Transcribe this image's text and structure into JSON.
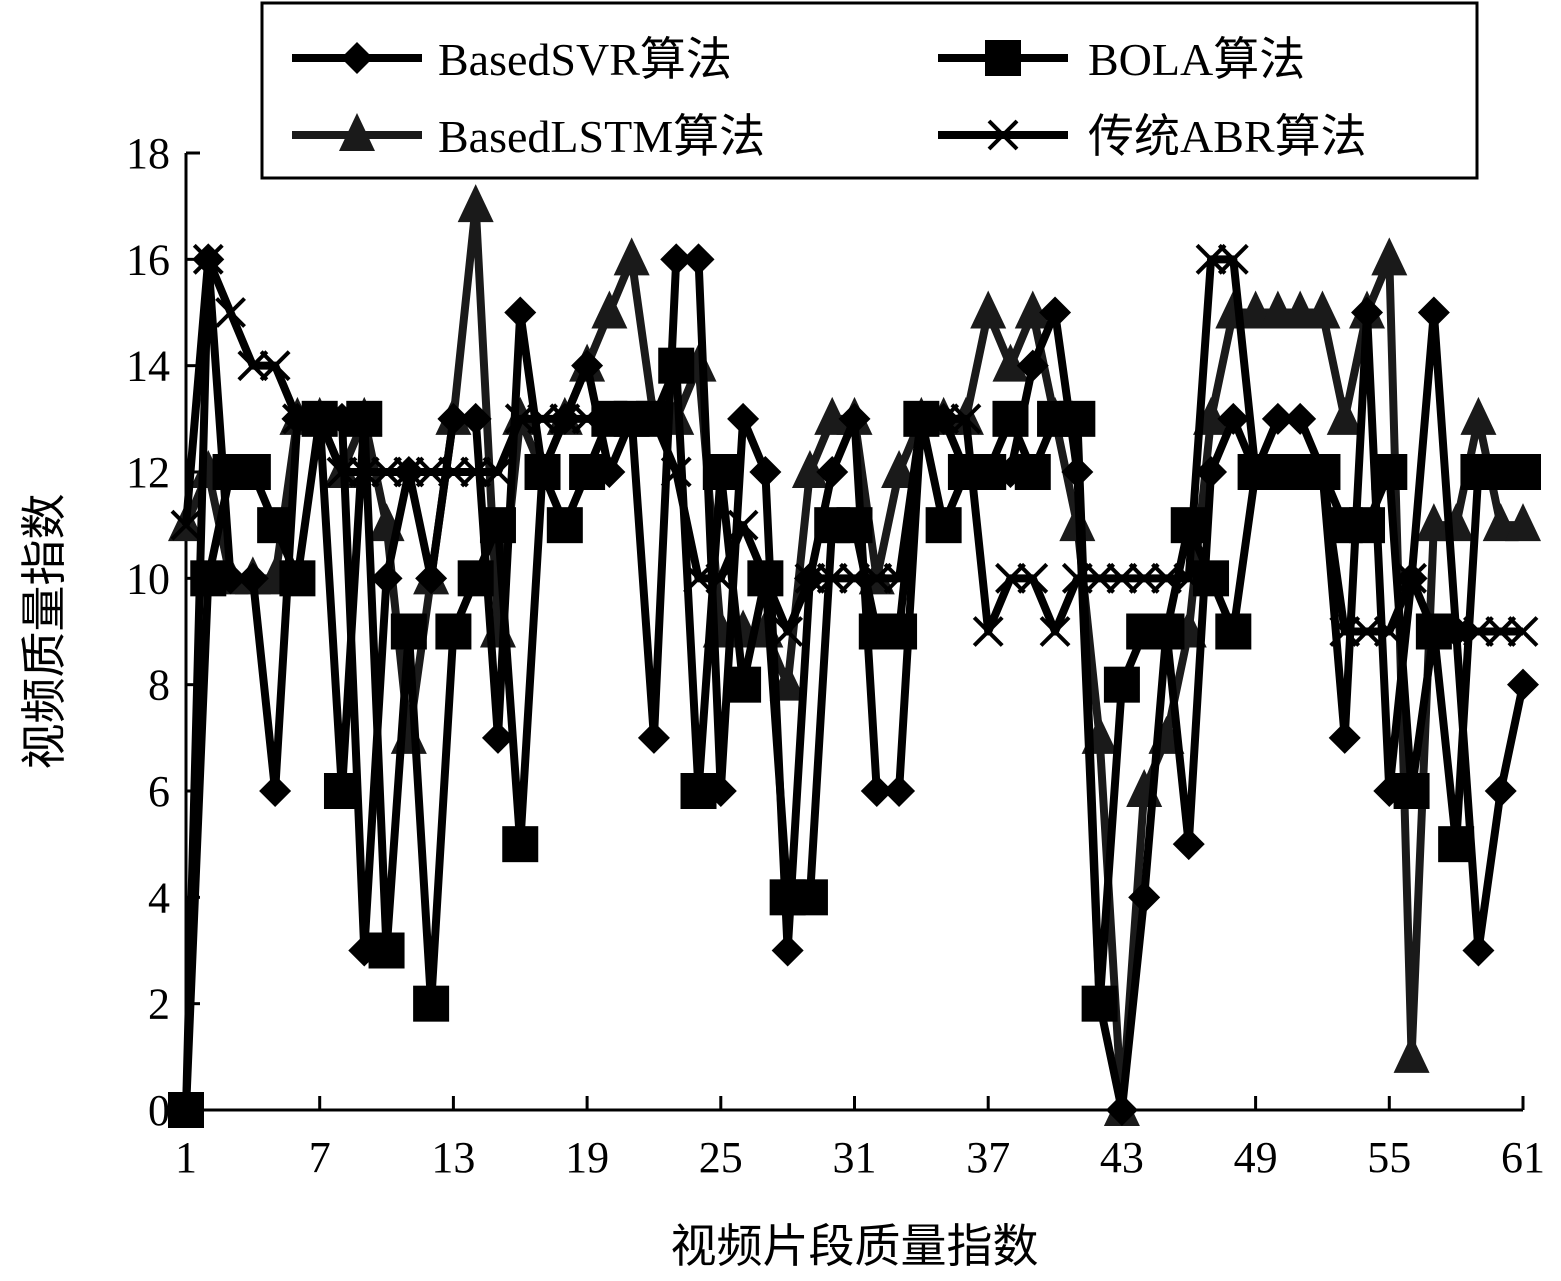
{
  "chart_data": {
    "type": "line",
    "xlabel": "视频片段质量指数",
    "ylabel": "视频质量指数",
    "xlim": [
      1,
      61
    ],
    "ylim": [
      0,
      18
    ],
    "x_ticks": [
      1,
      7,
      13,
      19,
      25,
      31,
      37,
      43,
      49,
      55,
      61
    ],
    "y_ticks": [
      0,
      2,
      4,
      6,
      8,
      10,
      12,
      14,
      16,
      18
    ],
    "grid": false,
    "legend_position": "top",
    "x": [
      1,
      2,
      3,
      4,
      5,
      6,
      7,
      8,
      9,
      10,
      11,
      12,
      13,
      14,
      15,
      16,
      17,
      18,
      19,
      20,
      21,
      22,
      23,
      24,
      25,
      26,
      27,
      28,
      29,
      30,
      31,
      32,
      33,
      34,
      35,
      36,
      37,
      38,
      39,
      40,
      41,
      42,
      43,
      44,
      45,
      46,
      47,
      48,
      49,
      50,
      51,
      52,
      53,
      54,
      55,
      56,
      57,
      58,
      59,
      60,
      61
    ],
    "series": [
      {
        "name": "BasedSVR算法",
        "marker": "diamond",
        "color": "#000000",
        "values": [
          0,
          16,
          10,
          10,
          6,
          13,
          13,
          13,
          3,
          10,
          12,
          10,
          13,
          13,
          7,
          15,
          12,
          13,
          14,
          12,
          13,
          7,
          16,
          16,
          6,
          13,
          12,
          3,
          10,
          12,
          13,
          6,
          6,
          13,
          13,
          12,
          12,
          12,
          14,
          15,
          12,
          2,
          0,
          4,
          9,
          5,
          12,
          13,
          12,
          13,
          13,
          12,
          7,
          15,
          6,
          10,
          15,
          9,
          3,
          6,
          8
        ]
      },
      {
        "name": "BOLA算法",
        "marker": "square",
        "color": "#000000",
        "values": [
          0,
          10,
          12,
          12,
          11,
          10,
          13,
          6,
          13,
          3,
          9,
          2,
          9,
          10,
          11,
          5,
          12,
          11,
          12,
          13,
          13,
          13,
          14,
          6,
          12,
          8,
          10,
          4,
          4,
          11,
          11,
          9,
          9,
          13,
          11,
          12,
          12,
          13,
          12,
          13,
          13,
          2,
          8,
          9,
          9,
          11,
          10,
          9,
          12,
          12,
          12,
          12,
          11,
          11,
          12,
          6,
          9,
          5,
          12,
          12,
          12
        ]
      },
      {
        "name": "BasedLSTM算法",
        "marker": "triangle",
        "color": "#1a1a1a",
        "values": [
          11,
          12,
          10,
          10,
          10,
          13,
          13,
          12,
          13,
          11,
          7,
          10,
          13,
          17,
          9,
          13,
          12,
          13,
          14,
          15,
          16,
          13,
          13,
          14,
          9,
          9,
          9,
          8,
          12,
          13,
          13,
          10,
          12,
          13,
          13,
          13,
          15,
          14,
          15,
          13,
          11,
          7,
          0,
          6,
          7,
          9,
          13,
          15,
          15,
          15,
          15,
          15,
          13,
          15,
          16,
          1,
          11,
          11,
          13,
          11,
          11
        ]
      },
      {
        "name": "传统ABR算法",
        "marker": "cross",
        "color": "#000000",
        "values": [
          11,
          16,
          15,
          14,
          14,
          13,
          13,
          12,
          12,
          12,
          12,
          12,
          12,
          12,
          12,
          13,
          13,
          13,
          13,
          13,
          13,
          13,
          12,
          10,
          10,
          11,
          10,
          9,
          10,
          10,
          10,
          10,
          10,
          13,
          13,
          13,
          9,
          10,
          10,
          9,
          10,
          10,
          10,
          10,
          10,
          10,
          16,
          16,
          12,
          12,
          12,
          12,
          9,
          9,
          9,
          10,
          9,
          9,
          9,
          9,
          9
        ]
      }
    ]
  }
}
